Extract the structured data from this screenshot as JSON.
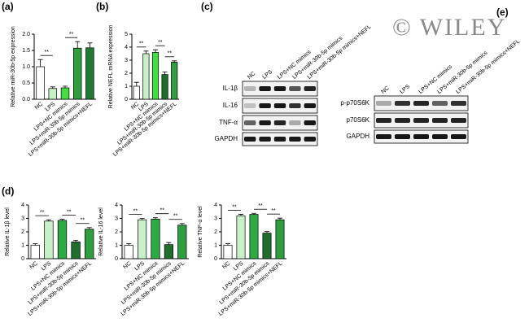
{
  "panel_labels": [
    "(a)",
    "(b)",
    "(c)",
    "(d)",
    "(e)"
  ],
  "watermark": "© WILEY",
  "chart_data": [
    {
      "type": "bar",
      "y_label": "Relative miR-30b-5p expression",
      "categories": [
        "NC",
        "LPS",
        "LPS+NC mimics",
        "LPS+miR-30b-5p mimics",
        "LPS+miR-30b-5p mimics+NEFL"
      ],
      "values": [
        1.0,
        0.33,
        0.35,
        1.57,
        1.58
      ],
      "errors": [
        0.22,
        0.05,
        0.05,
        0.2,
        0.15
      ],
      "colors": [
        "#ffffff",
        "#c8f0c8",
        "#44dd44",
        "#2e9e3e",
        "#1f7a33"
      ],
      "ylim": [
        0,
        2
      ],
      "yticks": [
        {
          "value": 0,
          "label": "0.0"
        },
        {
          "value": 0.5,
          "label": "0.5"
        },
        {
          "value": 1,
          "label": "1.0"
        },
        {
          "value": 1.5,
          "label": "1.5"
        },
        {
          "value": 2,
          "label": "2.0"
        }
      ],
      "annotations": [
        "**",
        "**"
      ]
    },
    {
      "type": "bar",
      "y_label": "Relative NEFL mRNA expression",
      "categories": [
        "NC",
        "LPS",
        "LPS+NC mimics",
        "LPS+miR-30b-5p mimics",
        "LPS+miR-30b-5p mimics+NEFL"
      ],
      "values": [
        1.0,
        3.5,
        3.6,
        1.9,
        2.85
      ],
      "errors": [
        0.3,
        0.2,
        0.2,
        0.2,
        0.1
      ],
      "colors": [
        "#ffffff",
        "#c8f0c8",
        "#44dd44",
        "#1f6e2e",
        "#2e9e3e"
      ],
      "ylim": [
        0,
        5
      ],
      "yticks": [
        0,
        1,
        2,
        3,
        4,
        5
      ],
      "annotations": [
        "**",
        "**",
        "**"
      ]
    },
    {
      "type": "bar",
      "y_label": "Relative  IL-1β level",
      "categories": [
        "NC",
        "LPS",
        "LPS+NC mimics",
        "LPS+miR-30b-5p mimics",
        "LPS+miR-30b-5p mimics+NEFL"
      ],
      "values": [
        1.0,
        2.8,
        2.85,
        1.25,
        2.2
      ],
      "errors": [
        0.12,
        0.1,
        0.08,
        0.12,
        0.12
      ],
      "colors": [
        "#ffffff",
        "#c8f0c8",
        "#2eaa44",
        "#1f6e2e",
        "#2e9e3e"
      ],
      "ylim": [
        0,
        4
      ],
      "yticks": [
        0,
        1,
        2,
        3,
        4
      ],
      "annotations": [
        "**",
        "**",
        "**"
      ]
    },
    {
      "type": "bar",
      "y_label": "Relative  IL-16 level",
      "categories": [
        "NC",
        "LPS",
        "LPS+NC mimics",
        "LPS+miR-30b-5p mimics",
        "LPS+miR-30b-5p mimics+NEFL"
      ],
      "values": [
        1.0,
        2.9,
        2.95,
        1.05,
        2.5
      ],
      "errors": [
        0.12,
        0.1,
        0.1,
        0.15,
        0.12
      ],
      "colors": [
        "#ffffff",
        "#c8f0c8",
        "#2eaa44",
        "#1f6e2e",
        "#2e9e3e"
      ],
      "ylim": [
        0,
        4
      ],
      "yticks": [
        0,
        1,
        2,
        3,
        4
      ],
      "annotations": [
        "**",
        "**",
        "**"
      ]
    },
    {
      "type": "bar",
      "y_label": "Relative  TNF-α level",
      "categories": [
        "NC",
        "LPS",
        "LPS+NC mimics",
        "LPS+miR-30b-5p mimics",
        "LPS+miR-30b-5p mimics+NEFL"
      ],
      "values": [
        1.0,
        3.2,
        3.3,
        1.9,
        2.9
      ],
      "errors": [
        0.12,
        0.1,
        0.08,
        0.12,
        0.12
      ],
      "colors": [
        "#ffffff",
        "#c8f0c8",
        "#2eaa44",
        "#1f6e2e",
        "#2e9e3e"
      ],
      "ylim": [
        0,
        4
      ],
      "yticks": [
        0,
        1,
        2,
        3,
        4
      ],
      "annotations": [
        "**",
        "**",
        "**"
      ]
    }
  ],
  "blots": [
    {
      "lanes": [
        "NC",
        "LPS",
        "LPS+NC mimics",
        "LPS+miR-30b-5p mimics",
        "LPS+miR-30b-5p mimics+NEFL"
      ],
      "rows": [
        "IL-1β",
        "IL-16",
        "TNF-α",
        "GAPDH"
      ]
    },
    {
      "lanes": [
        "NC",
        "LPS",
        "LPS+NC mimics",
        "LPS+miR-30b-5p mimics",
        "LPS+miR-30b-5p mimics+NEFL"
      ],
      "rows": [
        "p-p70S6K",
        "p70S6K",
        "GAPDH"
      ]
    }
  ]
}
